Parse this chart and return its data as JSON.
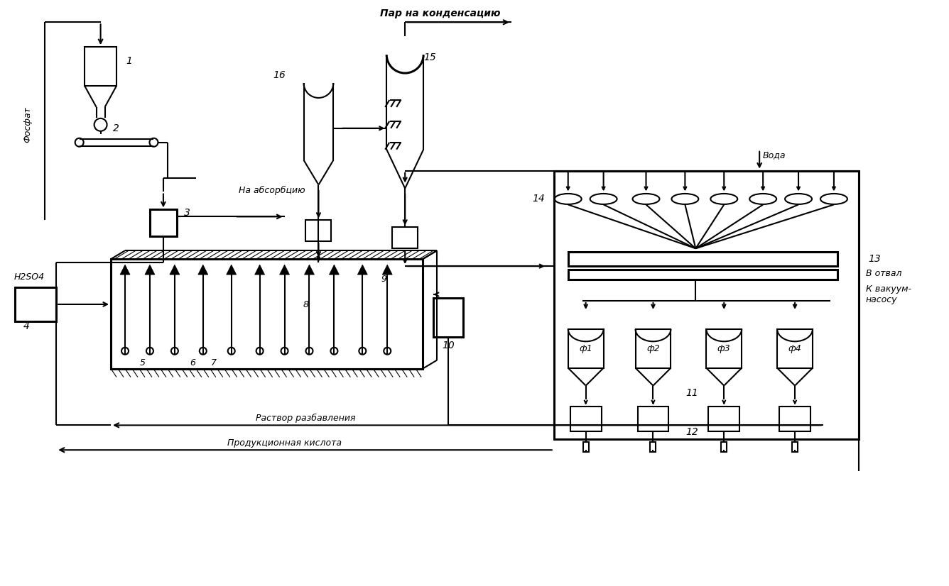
{
  "bg_color": "#ffffff",
  "line_color": "#000000",
  "labels": {
    "fosfat": "Фосфат",
    "h2so4": "H2SO4",
    "na_absorbciyu": "На абсорбцию",
    "par_na_kondensaciyu": "Пар на конденсацию",
    "rastvor_razbavleniya": "Раствор разбавления",
    "produkcionnaya_kislota": "Продукционная кислота",
    "voda": "Вода",
    "v_otval": "В отвал",
    "k_vakuum_nasosu": "К вакуум-\nнасосу",
    "f1": "ф1",
    "f2": "ф2",
    "f3": "ф3",
    "f4": "ф4"
  },
  "numbers": [
    "1",
    "2",
    "3",
    "4",
    "5",
    "6",
    "7",
    "8",
    "9",
    "10",
    "11",
    "12",
    "13",
    "14",
    "15",
    "16"
  ]
}
